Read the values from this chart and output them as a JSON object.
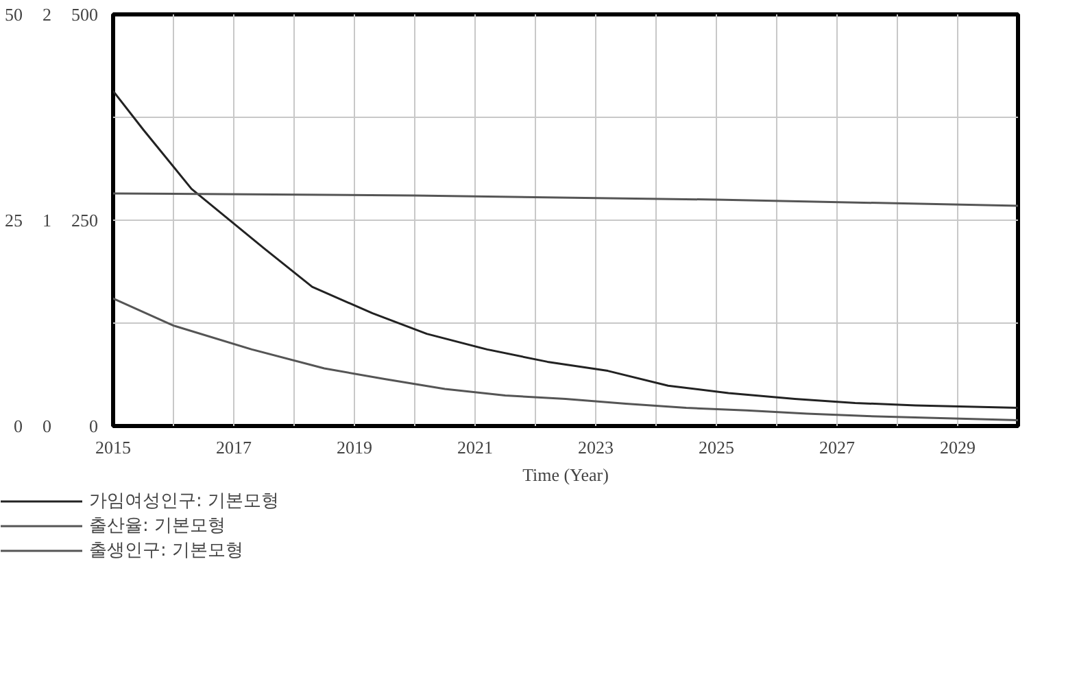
{
  "chart_data": {
    "type": "line",
    "xlabel": "Time (Year)",
    "x": [
      2015,
      2015.5,
      2016.3,
      2017.5,
      2018.3,
      2019.3,
      2020.2,
      2021.2,
      2022.2,
      2023.2,
      2024.2,
      2025.2,
      2026.3,
      2027.3,
      2028.3,
      2030
    ],
    "series": [
      {
        "name": "가임여성인구: 기본모형",
        "color": "#222222",
        "values": [
          407,
          360,
          288,
          216,
          169,
          137,
          112,
          93,
          78,
          67,
          49,
          40,
          33,
          28,
          25,
          22
        ]
      },
      {
        "name": "출산율: 기본모형",
        "color": "#555555",
        "axis": "y2",
        "x": [
          2015,
          2020,
          2025,
          2030
        ],
        "values": [
          1.13,
          1.12,
          1.1,
          1.07
        ]
      },
      {
        "name": "출생인구: 기본모형",
        "color": "#555555",
        "axis": "y3",
        "x": [
          2015,
          2016,
          2017.3,
          2018.5,
          2019.5,
          2020.5,
          2021.5,
          2022.5,
          2023.5,
          2024.5,
          2025.5,
          2026.5,
          2027.5,
          2028.5,
          2030
        ],
        "values": [
          15.5,
          12.2,
          9.3,
          7.0,
          5.7,
          4.5,
          3.7,
          3.3,
          2.7,
          2.2,
          1.9,
          1.5,
          1.2,
          1.0,
          0.7
        ]
      }
    ],
    "xlim": [
      2015,
      2030
    ],
    "xticks": [
      2015,
      {
        "value": 2016,
        "label": null
      },
      2017,
      {
        "value": 2018,
        "label": null
      },
      2019,
      {
        "value": 2020,
        "label": null
      },
      2021,
      {
        "value": 2022,
        "label": null
      },
      2023,
      {
        "value": 2024,
        "label": null
      },
      2025,
      {
        "value": 2026,
        "label": null
      },
      2027,
      {
        "value": 2028,
        "label": null
      },
      2029,
      {
        "value": 2030,
        "label": null
      }
    ],
    "ylim": [
      0,
      500
    ],
    "yticks": [
      0,
      {
        "value": 125,
        "label": null
      },
      250,
      {
        "value": 375,
        "label": null
      },
      500
    ],
    "y2lim": [
      0,
      2
    ],
    "y2ticks": [
      0,
      1,
      2
    ],
    "y3lim": [
      0,
      50
    ],
    "y3ticks": [
      0,
      25,
      50
    ],
    "grid": true,
    "legend": "bottom",
    "marker": "none",
    "line_style": "solid"
  }
}
